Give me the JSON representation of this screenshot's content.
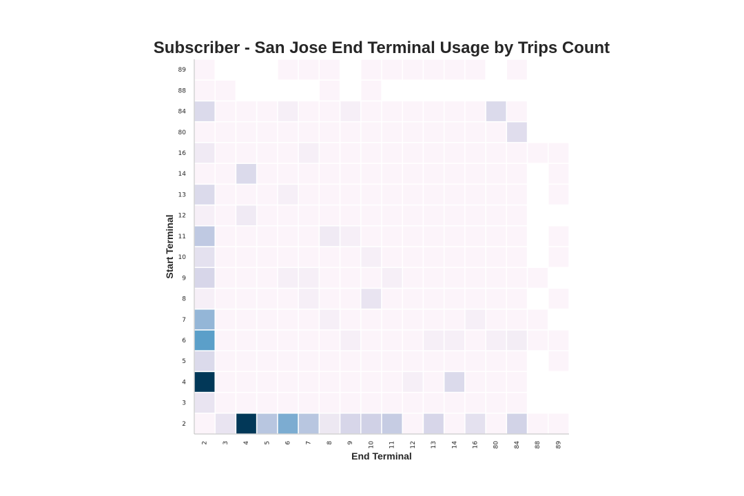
{
  "chart_data": {
    "type": "heatmap",
    "title": "Subscriber - San Jose End Terminal Usage by Trips Count",
    "xlabel": "End Terminal",
    "ylabel": "Start Terminal",
    "x_categories": [
      "2",
      "3",
      "4",
      "5",
      "6",
      "7",
      "8",
      "9",
      "10",
      "11",
      "12",
      "13",
      "14",
      "16",
      "80",
      "84",
      "88",
      "89"
    ],
    "y_categories": [
      "2",
      "3",
      "4",
      "5",
      "6",
      "7",
      "8",
      "9",
      "10",
      "11",
      "12",
      "13",
      "14",
      "16",
      "80",
      "84",
      "88",
      "89"
    ],
    "colormap": "PuBu",
    "colormap_stops": [
      "#fff7fb",
      "#ece7f2",
      "#d0d1e6",
      "#a6bddb",
      "#74a9cf",
      "#3690c0",
      "#0570b0",
      "#045a8d",
      "#023858"
    ],
    "value_range": [
      0,
      1
    ],
    "grid": false,
    "values": [
      [
        0.02,
        0.14,
        1.0,
        0.32,
        0.48,
        0.32,
        0.12,
        0.22,
        0.25,
        0.28,
        0.02,
        0.22,
        0.02,
        0.16,
        0.02,
        0.24,
        0.02,
        0.02
      ],
      [
        0.14,
        0.02,
        0.02,
        0.02,
        0.02,
        0.02,
        0.02,
        0.02,
        0.02,
        0.02,
        0.02,
        0.02,
        0.02,
        0.02,
        0.02,
        0.02,
        null,
        null
      ],
      [
        1.0,
        0.02,
        0.02,
        0.02,
        0.02,
        0.02,
        0.02,
        0.02,
        0.02,
        0.02,
        0.06,
        0.02,
        0.2,
        0.02,
        0.02,
        0.02,
        null,
        null
      ],
      [
        0.2,
        0.02,
        0.02,
        0.02,
        0.02,
        0.02,
        0.02,
        0.02,
        0.02,
        0.02,
        0.02,
        0.02,
        0.02,
        0.02,
        0.02,
        0.02,
        null,
        0.02
      ],
      [
        0.55,
        0.02,
        0.02,
        0.02,
        0.02,
        0.02,
        0.02,
        0.06,
        0.02,
        0.02,
        0.02,
        0.06,
        0.06,
        0.02,
        0.06,
        0.08,
        0.02,
        0.02
      ],
      [
        0.42,
        0.02,
        0.02,
        0.02,
        0.02,
        0.02,
        0.06,
        0.02,
        0.02,
        0.02,
        0.02,
        0.02,
        0.02,
        0.06,
        0.02,
        0.02,
        0.02,
        null
      ],
      [
        0.06,
        0.02,
        0.02,
        0.02,
        0.02,
        0.06,
        0.02,
        0.02,
        0.14,
        0.02,
        0.02,
        0.02,
        0.02,
        0.02,
        0.02,
        0.02,
        null,
        0.02
      ],
      [
        0.22,
        0.02,
        0.02,
        0.02,
        0.06,
        0.06,
        0.02,
        0.02,
        0.02,
        0.06,
        0.02,
        0.02,
        0.02,
        0.02,
        0.02,
        0.02,
        0.02,
        null
      ],
      [
        0.16,
        0.02,
        0.02,
        0.02,
        0.02,
        0.02,
        0.02,
        0.02,
        0.06,
        0.02,
        0.02,
        0.02,
        0.02,
        0.02,
        0.02,
        0.02,
        null,
        0.02
      ],
      [
        0.3,
        0.02,
        0.02,
        0.02,
        0.02,
        0.02,
        0.1,
        0.06,
        0.02,
        0.02,
        0.02,
        0.02,
        0.02,
        0.02,
        0.02,
        0.02,
        null,
        0.02
      ],
      [
        0.06,
        0.02,
        0.1,
        0.02,
        0.02,
        0.02,
        0.02,
        0.02,
        0.02,
        0.02,
        0.02,
        0.02,
        0.02,
        0.02,
        0.02,
        0.02,
        null,
        null
      ],
      [
        0.2,
        0.02,
        0.02,
        0.02,
        0.06,
        0.02,
        0.02,
        0.02,
        0.02,
        0.02,
        0.02,
        0.02,
        0.02,
        0.02,
        0.02,
        0.02,
        null,
        0.02
      ],
      [
        0.02,
        0.02,
        0.2,
        0.02,
        0.02,
        0.02,
        0.02,
        0.02,
        0.02,
        0.02,
        0.02,
        0.02,
        0.02,
        0.02,
        0.02,
        0.02,
        null,
        0.02
      ],
      [
        0.1,
        0.02,
        0.02,
        0.02,
        0.02,
        0.06,
        0.02,
        0.02,
        0.02,
        0.02,
        0.02,
        0.02,
        0.02,
        0.02,
        0.02,
        0.02,
        0.02,
        0.02
      ],
      [
        0.02,
        0.02,
        0.02,
        0.02,
        0.02,
        0.02,
        0.02,
        0.02,
        0.02,
        0.02,
        0.02,
        0.02,
        0.02,
        0.02,
        0.02,
        0.18,
        null,
        null
      ],
      [
        0.2,
        0.02,
        0.02,
        0.02,
        0.06,
        0.02,
        0.02,
        0.06,
        0.02,
        0.02,
        0.02,
        0.02,
        0.02,
        0.02,
        0.2,
        0.02,
        null,
        null
      ],
      [
        0.02,
        0.02,
        null,
        null,
        null,
        null,
        0.02,
        null,
        0.02,
        null,
        null,
        null,
        null,
        null,
        null,
        null,
        null,
        null
      ],
      [
        0.02,
        null,
        null,
        null,
        0.02,
        0.02,
        0.02,
        null,
        0.02,
        0.02,
        0.02,
        0.02,
        0.02,
        0.02,
        null,
        0.02,
        null,
        null
      ]
    ]
  }
}
